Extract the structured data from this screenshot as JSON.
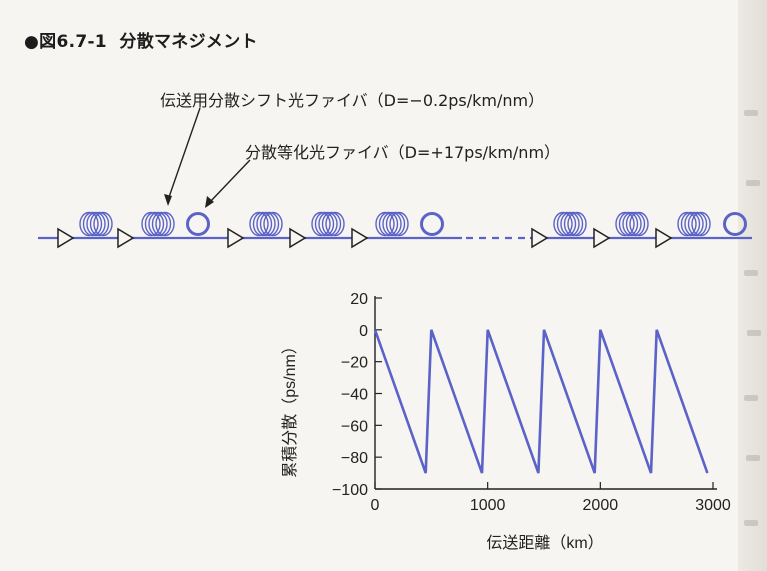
{
  "figure": {
    "bullet": "●",
    "number": "図6.7-1",
    "title": "分散マネジメント"
  },
  "diagram": {
    "label_transmission_fiber": "伝送用分散シフト光ファイバ（D=−0.2ps/km/nm）",
    "label_compensating_fiber": "分散等化光ファイバ（D=+17ps/km/nm）",
    "line_color": "#5b63c8",
    "amplifier_color": "#222222"
  },
  "chart_data": {
    "type": "line",
    "xlabel": "伝送距離（km）",
    "ylabel": "累積分散（ps/nm）",
    "xlim": [
      0,
      3000
    ],
    "ylim": [
      -100,
      20
    ],
    "x_ticks": [
      "0",
      "1000",
      "2000",
      "3000"
    ],
    "y_ticks": [
      "20",
      "0",
      "−20",
      "−40",
      "−60",
      "−80",
      "−100"
    ],
    "y_tick_values": [
      20,
      0,
      -20,
      -40,
      -60,
      -80,
      -100
    ],
    "x_tick_values": [
      0,
      1000,
      2000,
      3000
    ],
    "series": [
      {
        "color": "#5b63c8",
        "x": [
          0,
          450,
          500,
          950,
          1000,
          1450,
          1500,
          1950,
          2000,
          2450,
          2500,
          2950,
          3000
        ],
        "y": [
          0,
          -90,
          0,
          -90,
          0,
          -90,
          0,
          -90,
          0,
          -90,
          0,
          -90,
          -90
        ]
      }
    ]
  }
}
